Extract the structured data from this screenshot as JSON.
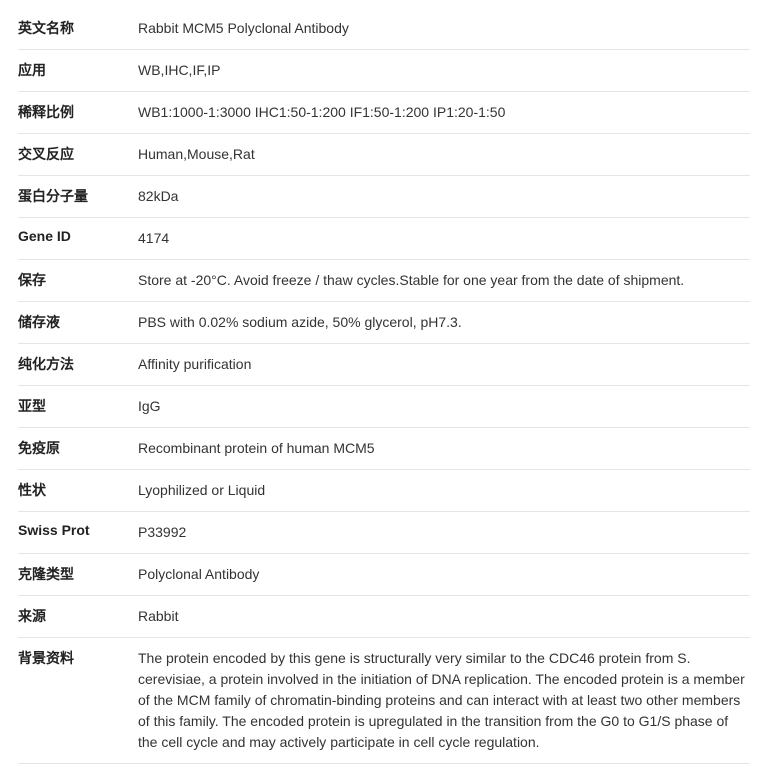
{
  "rows": [
    {
      "label": "英文名称",
      "value": "Rabbit MCM5 Polyclonal Antibody"
    },
    {
      "label": "应用",
      "value": "WB,IHC,IF,IP"
    },
    {
      "label": "稀释比例",
      "value": "WB1:1000-1:3000 IHC1:50-1:200 IF1:50-1:200 IP1:20-1:50"
    },
    {
      "label": "交叉反应",
      "value": "Human,Mouse,Rat"
    },
    {
      "label": "蛋白分子量",
      "value": "82kDa"
    },
    {
      "label": "Gene ID",
      "value": "4174"
    },
    {
      "label": "保存",
      "value": "Store at -20°C. Avoid freeze / thaw cycles.Stable for one year from the date of shipment."
    },
    {
      "label": "储存液",
      "value": "PBS with 0.02% sodium azide, 50% glycerol, pH7.3."
    },
    {
      "label": "纯化方法",
      "value": "Affinity purification"
    },
    {
      "label": "亚型",
      "value": "IgG"
    },
    {
      "label": "免疫原",
      "value": "Recombinant protein of human MCM5"
    },
    {
      "label": "性状",
      "value": "Lyophilized or Liquid"
    },
    {
      "label": "Swiss Prot",
      "value": "P33992"
    },
    {
      "label": "克隆类型",
      "value": "Polyclonal Antibody"
    },
    {
      "label": "来源",
      "value": "Rabbit"
    },
    {
      "label": "背景资料",
      "value": "The protein encoded by this gene is structurally very similar to the CDC46 protein from S. cerevisiae, a protein involved in the initiation of DNA replication. The encoded protein is a member of the MCM family of chromatin-binding proteins and can interact with at least two other members of this family. The encoded protein is upregulated in the transition from the G0 to G1/S phase of the cell cycle and may actively participate in cell cycle regulation."
    }
  ]
}
